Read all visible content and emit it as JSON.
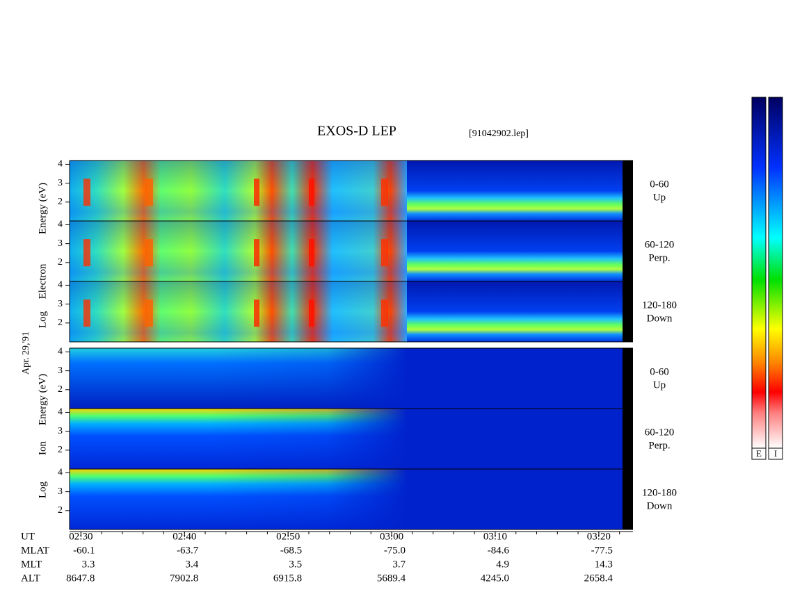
{
  "chart_data": {
    "type": "spectrogram",
    "title": "EXOS-D LEP",
    "file": "[91042902.lep]",
    "date": "Apr. 29,'91",
    "groups": [
      {
        "ylabel": [
          "Log",
          "Electron",
          "Energy (eV)"
        ],
        "panels": [
          {
            "label": [
              "0-60",
              "Up"
            ]
          },
          {
            "label": [
              "60-120",
              "Perp."
            ]
          },
          {
            "label": [
              "120-180",
              "Down"
            ]
          }
        ]
      },
      {
        "ylabel": [
          "Log",
          "Ion",
          "Energy (eV)"
        ],
        "panels": [
          {
            "label": [
              "0-60",
              "Up"
            ]
          },
          {
            "label": [
              "60-120",
              "Perp."
            ]
          },
          {
            "label": [
              "120-180",
              "Down"
            ]
          }
        ]
      }
    ],
    "ylim": [
      1,
      4.2
    ],
    "yticks": [
      2,
      3,
      4
    ],
    "xlim": [
      148.9,
      203.3
    ],
    "xticks": [
      {
        "value": 150,
        "label": "02:30"
      },
      {
        "value": 160,
        "label": "02:40"
      },
      {
        "value": 170,
        "label": "02:50"
      },
      {
        "value": 180,
        "label": "03:00"
      },
      {
        "value": 190,
        "label": "03:10"
      },
      {
        "value": 200,
        "label": "03:20"
      }
    ],
    "xlabel": "UT",
    "ephemeris": [
      {
        "label": "MLAT",
        "values": [
          "-60.1",
          "-63.7",
          "-68.5",
          "-75.0",
          "-84.6",
          "-77.5"
        ]
      },
      {
        "label": "MLT",
        "values": [
          "3.3",
          "3.4",
          "3.5",
          "3.7",
          "4.9",
          "14.3"
        ]
      },
      {
        "label": "ALT",
        "values": [
          "8647.8",
          "7902.8",
          "6915.8",
          "5689.4",
          "4245.0",
          "2658.4"
        ]
      }
    ],
    "colorbars": [
      "E",
      "I"
    ]
  }
}
